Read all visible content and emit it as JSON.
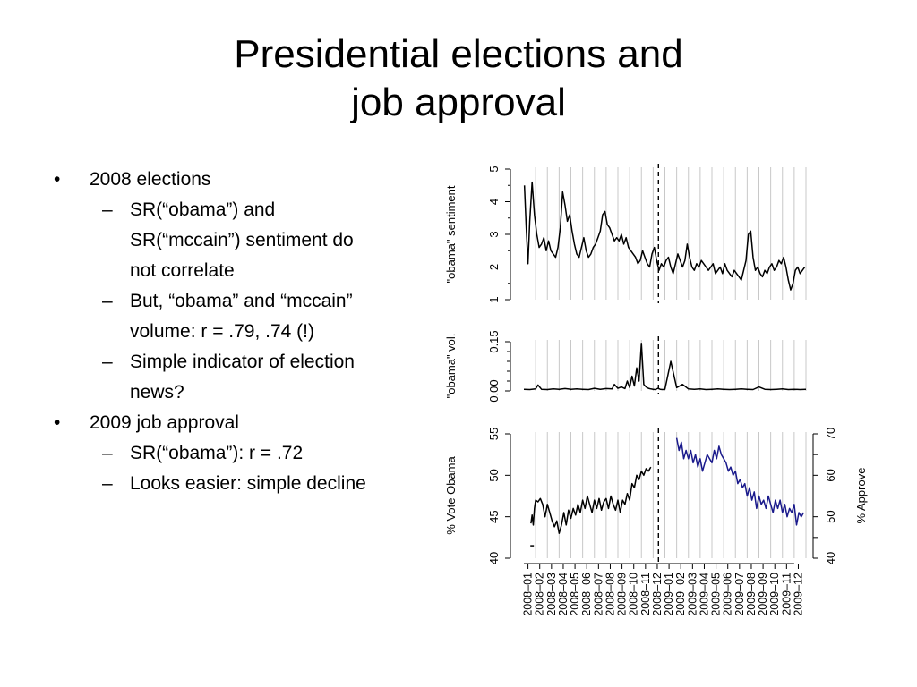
{
  "slide": {
    "title_line1": "Presidential elections and",
    "title_line2": "job approval",
    "bullets": [
      {
        "text": "2008 elections",
        "subs": [
          {
            "lines": [
              "SR(“obama”) and",
              "SR(“mccain”) sentiment do",
              "not correlate"
            ]
          },
          {
            "lines": [
              "But, “obama” and “mccain”",
              "volume: r = .79, .74 (!)"
            ]
          },
          {
            "lines": [
              "Simple indicator of election",
              "news?"
            ]
          }
        ]
      },
      {
        "text": "2009 job approval",
        "subs": [
          {
            "lines": [
              "SR(“obama”): r = .72"
            ]
          },
          {
            "lines": [
              "Looks easier: simple decline"
            ]
          }
        ]
      }
    ]
  },
  "chart_data": {
    "type": "line",
    "x_tick_labels": [
      "2008–01",
      "2008–02",
      "2008–03",
      "2008–04",
      "2008–05",
      "2008–06",
      "2008–07",
      "2008–08",
      "2008–09",
      "2008–10",
      "2008–11",
      "2008–12",
      "2009–01",
      "2009–02",
      "2009–03",
      "2009–04",
      "2009–05",
      "2009–06",
      "2009–07",
      "2009–08",
      "2009–09",
      "2009–10",
      "2009–11",
      "2009–12"
    ],
    "election_marker": "2008-11-04",
    "panels": [
      {
        "ylabel": "\"obama\" sentiment",
        "ylim": [
          1,
          5
        ],
        "yticks": [
          "1",
          "2",
          "3",
          "4",
          "5"
        ],
        "series": [
          {
            "color": "#000000",
            "x": [
              0.05,
              0.2,
              0.35,
              0.5,
              0.7,
              0.9,
              1.1,
              1.3,
              1.5,
              1.7,
              1.9,
              2.1,
              2.3,
              2.5,
              2.7,
              2.9,
              3.1,
              3.3,
              3.5,
              3.7,
              3.9,
              4.1,
              4.3,
              4.5,
              4.7,
              4.9,
              5.1,
              5.3,
              5.5,
              5.7,
              5.9,
              6.1,
              6.3,
              6.5,
              6.7,
              6.9,
              7.1,
              7.3,
              7.5,
              7.7,
              7.9,
              8.1,
              8.3,
              8.5,
              8.7,
              8.9,
              9.1,
              9.3,
              9.5,
              9.7,
              9.9,
              10.1,
              10.3,
              10.5,
              10.7,
              10.9,
              11.1,
              11.3,
              11.5,
              11.7,
              11.9,
              12.1,
              12.3,
              12.5,
              12.7,
              12.9,
              13.1,
              13.3,
              13.5,
              13.7,
              13.9,
              14.1,
              14.3,
              14.5,
              14.7,
              14.9,
              15.1,
              15.3,
              15.5,
              15.7,
              15.9,
              16.1,
              16.3,
              16.5,
              16.7,
              16.9,
              17.1,
              17.3,
              17.5,
              17.7,
              17.9,
              18.1,
              18.3,
              18.5,
              18.7,
              18.9,
              19.1,
              19.3,
              19.5,
              19.7,
              19.9,
              20.1,
              20.3,
              20.5,
              20.7,
              20.9,
              21.1,
              21.3,
              21.5,
              21.7,
              21.9,
              22.1,
              22.3,
              22.5,
              22.7,
              22.9,
              23.1,
              23.3,
              23.5,
              23.7,
              23.9
            ],
            "y": [
              4.5,
              3.2,
              2.1,
              3.4,
              4.6,
              3.6,
              3.0,
              2.6,
              2.7,
              2.9,
              2.5,
              2.8,
              2.5,
              2.4,
              2.3,
              2.6,
              3.2,
              4.3,
              3.9,
              3.4,
              3.6,
              3.1,
              2.7,
              2.4,
              2.3,
              2.6,
              2.9,
              2.5,
              2.3,
              2.4,
              2.6,
              2.7,
              2.9,
              3.1,
              3.6,
              3.7,
              3.3,
              3.2,
              3.0,
              2.8,
              2.9,
              2.8,
              3.0,
              2.7,
              2.9,
              2.6,
              2.5,
              2.4,
              2.3,
              2.1,
              2.2,
              2.5,
              2.3,
              2.1,
              2.0,
              2.4,
              2.6,
              2.2,
              1.9,
              2.1,
              2.0,
              2.2,
              2.3,
              2.0,
              1.8,
              2.1,
              2.4,
              2.2,
              2.0,
              2.2,
              2.7,
              2.3,
              2.0,
              1.9,
              2.1,
              2.0,
              2.2,
              2.1,
              2.0,
              1.9,
              2.0,
              2.1,
              1.8,
              1.9,
              2.0,
              1.8,
              2.1,
              1.9,
              1.8,
              1.7,
              1.9,
              1.8,
              1.7,
              1.6,
              1.9,
              2.2,
              3.0,
              3.1,
              2.3,
              1.9,
              2.0,
              1.8,
              1.7,
              1.9,
              1.8,
              2.0,
              2.1,
              1.9,
              2.0,
              2.2,
              2.1,
              2.3,
              2.0,
              1.6,
              1.3,
              1.5,
              1.9,
              2.0,
              1.8,
              1.9,
              2.0
            ]
          }
        ]
      },
      {
        "ylabel": "\"obama\" vol.",
        "ylim": [
          0,
          0.15
        ],
        "yticks": [
          "0.00",
          "0.15"
        ],
        "series": [
          {
            "color": "#000000",
            "x": [
              0,
              0.5,
              1.0,
              1.2,
              1.5,
              2.0,
              2.5,
              3.0,
              3.5,
              4.0,
              4.5,
              5.0,
              5.5,
              6.0,
              6.5,
              7.0,
              7.5,
              7.7,
              8.0,
              8.3,
              8.6,
              8.8,
              9.0,
              9.2,
              9.4,
              9.6,
              9.8,
              10.0,
              10.2,
              10.4,
              10.6,
              10.8,
              11.0,
              11.2,
              11.4,
              11.6,
              11.8,
              12.0,
              12.5,
              13.0,
              13.5,
              14.0,
              14.5,
              15.0,
              15.5,
              16.0,
              16.5,
              17.0,
              17.5,
              18.0,
              18.5,
              19.0,
              19.5,
              20.0,
              20.5,
              21.0,
              21.5,
              22.0,
              22.5,
              23.0,
              23.5,
              24.0
            ],
            "y": [
              0.005,
              0.004,
              0.006,
              0.018,
              0.005,
              0.004,
              0.006,
              0.005,
              0.007,
              0.005,
              0.006,
              0.005,
              0.004,
              0.008,
              0.005,
              0.007,
              0.006,
              0.02,
              0.008,
              0.012,
              0.007,
              0.03,
              0.01,
              0.045,
              0.015,
              0.07,
              0.03,
              0.145,
              0.02,
              0.012,
              0.008,
              0.006,
              0.005,
              0.004,
              0.008,
              0.005,
              0.004,
              0.005,
              0.09,
              0.01,
              0.02,
              0.006,
              0.005,
              0.006,
              0.004,
              0.005,
              0.006,
              0.005,
              0.004,
              0.005,
              0.006,
              0.005,
              0.004,
              0.012,
              0.005,
              0.004,
              0.005,
              0.006,
              0.004,
              0.005,
              0.004,
              0.005
            ]
          }
        ]
      },
      {
        "ylabel": "% Vote Obama",
        "ylim": [
          40,
          55
        ],
        "yticks": [
          "40",
          "45",
          "50",
          "55"
        ],
        "ylabel_right": "% Approve",
        "ylim_right": [
          40,
          70
        ],
        "yticks_right": [
          "40",
          "50",
          "60",
          "70"
        ],
        "series": [
          {
            "color": "#000000",
            "x": [
              0.6,
              0.7,
              0.8,
              0.9,
              1.0,
              1.2,
              1.4,
              1.6,
              1.8,
              2.0,
              2.2,
              2.4,
              2.6,
              2.8,
              3.0,
              3.2,
              3.4,
              3.6,
              3.8,
              4.0,
              4.2,
              4.4,
              4.6,
              4.8,
              5.0,
              5.2,
              5.4,
              5.6,
              5.8,
              6.0,
              6.2,
              6.4,
              6.6,
              6.8,
              7.0,
              7.2,
              7.4,
              7.6,
              7.8,
              8.0,
              8.2,
              8.4,
              8.6,
              8.8,
              9.0,
              9.2,
              9.4,
              9.6,
              9.8,
              10.0,
              10.2,
              10.4,
              10.6,
              10.8
            ],
            "y": [
              44.2,
              45.2,
              44.0,
              46.0,
              47.0,
              46.8,
              47.2,
              46.5,
              45.0,
              46.5,
              45.5,
              44.5,
              43.8,
              44.5,
              43.0,
              44.0,
              45.5,
              44.0,
              45.8,
              44.8,
              46.0,
              45.2,
              46.5,
              45.5,
              47.0,
              46.0,
              47.5,
              46.5,
              45.5,
              47.0,
              46.0,
              47.2,
              45.8,
              46.8,
              47.2,
              46.0,
              47.5,
              46.5,
              45.8,
              47.0,
              45.5,
              47.0,
              46.5,
              47.8,
              47.0,
              49.0,
              48.5,
              50.0,
              49.5,
              50.5,
              50.0,
              50.8,
              50.5,
              51.0
            ]
          },
          {
            "color": "#1a1a8c",
            "axis": "right",
            "x": [
              13.0,
              13.2,
              13.4,
              13.6,
              13.8,
              14.0,
              14.2,
              14.4,
              14.6,
              14.8,
              15.0,
              15.2,
              15.4,
              15.6,
              15.8,
              16.0,
              16.2,
              16.4,
              16.6,
              16.8,
              17.0,
              17.2,
              17.4,
              17.6,
              17.8,
              18.0,
              18.2,
              18.4,
              18.6,
              18.8,
              19.0,
              19.2,
              19.4,
              19.6,
              19.8,
              20.0,
              20.2,
              20.4,
              20.6,
              20.8,
              21.0,
              21.2,
              21.4,
              21.6,
              21.8,
              22.0,
              22.2,
              22.4,
              22.6,
              22.8,
              23.0,
              23.2,
              23.4,
              23.6,
              23.8
            ],
            "y": [
              69,
              66,
              68,
              64,
              66,
              64,
              66,
              63,
              65,
              62,
              64,
              61,
              63,
              65,
              64,
              63,
              66,
              64,
              67,
              65,
              64,
              63,
              61,
              62,
              60,
              61,
              58,
              59,
              57,
              58,
              55,
              57,
              54,
              56,
              52,
              55,
              53,
              54,
              52,
              55,
              53,
              51,
              54,
              52,
              54,
              51,
              53,
              50,
              52,
              51,
              53,
              48,
              51,
              50,
              51
            ]
          }
        ]
      }
    ]
  }
}
